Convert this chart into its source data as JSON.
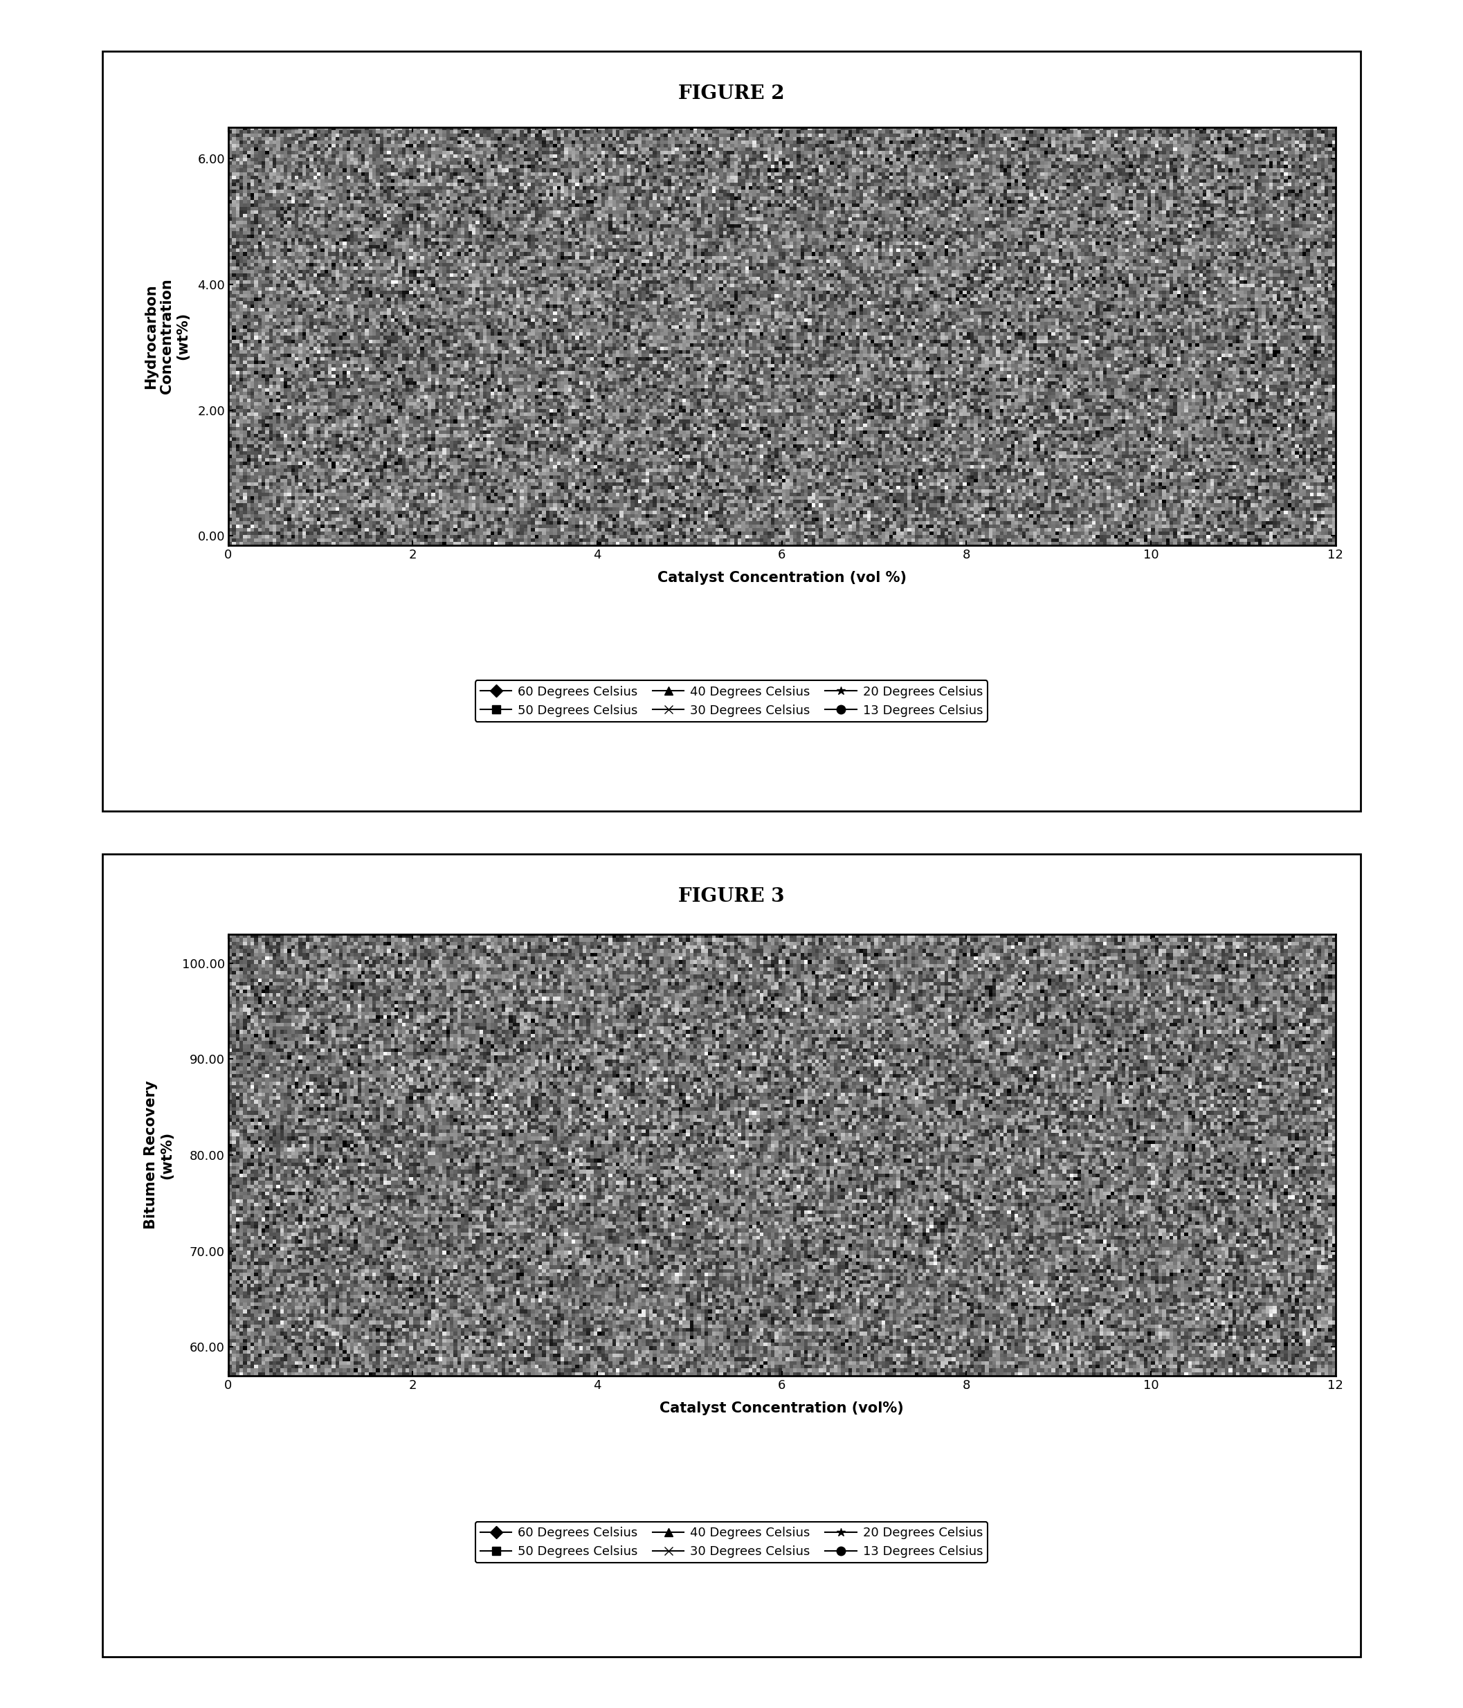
{
  "fig1_title": "FIGURE 2",
  "fig2_title": "FIGURE 3",
  "fig1_ylabel": "Hydrocarbon\nConcentration\n(wt%)",
  "fig1_xlabel": "Catalyst Concentration (vol %)",
  "fig2_ylabel": "Bitumen Recovery\n(wt%)",
  "fig2_xlabel": "Catalyst Concentration (vol%)",
  "fig1_yticks": [
    0.0,
    2.0,
    4.0,
    6.0
  ],
  "fig1_ytick_labels": [
    "0.00",
    "2.00",
    "4.00",
    "6.00"
  ],
  "fig1_ylim": [
    -0.15,
    6.5
  ],
  "fig2_yticks": [
    60.0,
    70.0,
    80.0,
    90.0,
    100.0
  ],
  "fig2_ytick_labels": [
    "60.00",
    "70.00",
    "80.00",
    "90.00",
    "100.00"
  ],
  "fig2_ylim": [
    57,
    103
  ],
  "xlim": [
    0,
    12
  ],
  "xticks": [
    0,
    2,
    4,
    6,
    8,
    10,
    12
  ],
  "legend_labels": [
    "60 Degrees Celsius",
    "50 Degrees Celsius",
    "40 Degrees Celsius",
    "30 Degrees Celsius",
    "20 Degrees Celsius",
    "13 Degrees Celsius"
  ],
  "legend_markers": [
    "D",
    "s",
    "^",
    "x",
    "*",
    "o"
  ],
  "plot_bg_color": "#606060",
  "fig_bg_color": "#ffffff",
  "title_fontsize": 20,
  "axis_label_fontsize": 15,
  "tick_fontsize": 13,
  "legend_fontsize": 13
}
